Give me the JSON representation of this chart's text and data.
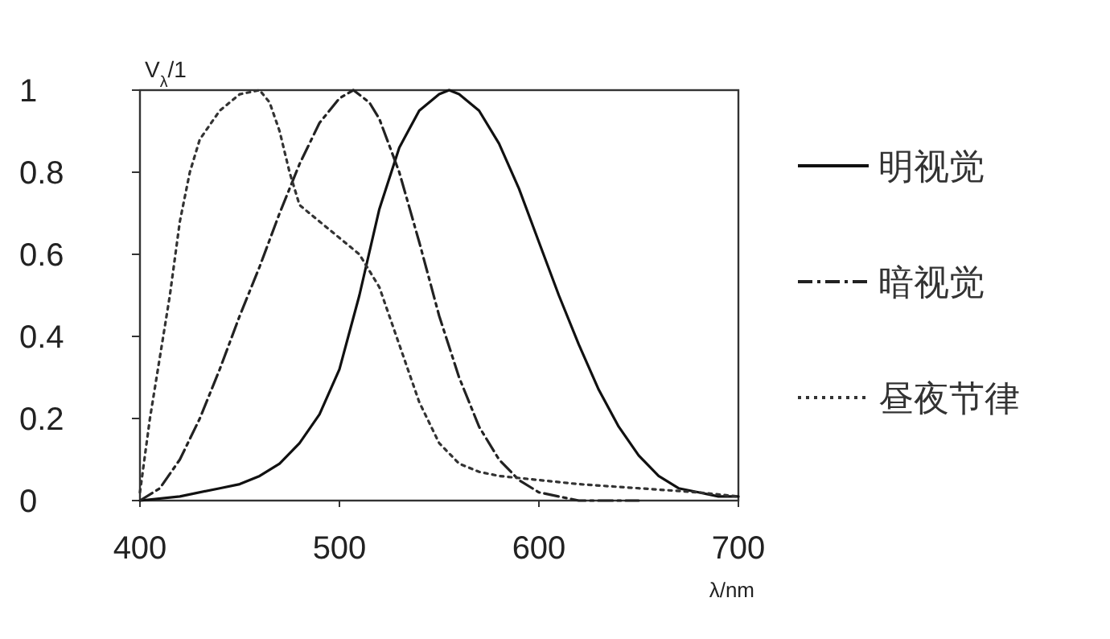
{
  "chart_data": {
    "type": "line",
    "ylabel": "V$_{λ}$/1",
    "xlabel": "λ/nm",
    "xlim": [
      400,
      700
    ],
    "ylim": [
      0,
      1
    ],
    "xticks": [
      400,
      500,
      600,
      700
    ],
    "yticks": [
      0,
      0.2,
      0.4,
      0.6,
      0.8,
      1
    ],
    "grid": false,
    "legend": "right",
    "series": [
      {
        "name": "明视觉",
        "color": "#111111",
        "line_style": "solid",
        "x": [
          400,
          420,
          440,
          450,
          460,
          470,
          480,
          490,
          500,
          510,
          520,
          530,
          540,
          550,
          555,
          560,
          570,
          580,
          590,
          600,
          610,
          620,
          630,
          640,
          650,
          660,
          670,
          680,
          690,
          700
        ],
        "values": [
          0,
          0.01,
          0.03,
          0.04,
          0.06,
          0.09,
          0.14,
          0.21,
          0.32,
          0.5,
          0.71,
          0.86,
          0.95,
          0.99,
          1,
          0.99,
          0.95,
          0.87,
          0.76,
          0.63,
          0.5,
          0.38,
          0.27,
          0.18,
          0.11,
          0.06,
          0.03,
          0.02,
          0.01,
          0.01
        ]
      },
      {
        "name": "暗视觉",
        "color": "#222222",
        "line_style": "dashdot",
        "x": [
          400,
          410,
          420,
          430,
          440,
          450,
          460,
          470,
          480,
          490,
          500,
          507,
          515,
          520,
          530,
          540,
          550,
          560,
          570,
          580,
          590,
          600,
          610,
          620,
          650
        ],
        "values": [
          0,
          0.03,
          0.1,
          0.2,
          0.32,
          0.45,
          0.57,
          0.7,
          0.82,
          0.92,
          0.98,
          1,
          0.97,
          0.93,
          0.8,
          0.63,
          0.45,
          0.3,
          0.18,
          0.1,
          0.05,
          0.02,
          0.01,
          0,
          0
        ]
      },
      {
        "name": "昼夜节律",
        "color": "#333333",
        "line_style": "dotted",
        "x": [
          400,
          405,
          410,
          415,
          420,
          425,
          430,
          440,
          450,
          460,
          465,
          470,
          475,
          480,
          490,
          500,
          510,
          520,
          530,
          540,
          550,
          560,
          570,
          580,
          600,
          620,
          650,
          680,
          700
        ],
        "values": [
          0.02,
          0.2,
          0.35,
          0.5,
          0.68,
          0.8,
          0.88,
          0.95,
          0.99,
          1,
          0.97,
          0.9,
          0.8,
          0.72,
          0.68,
          0.64,
          0.6,
          0.52,
          0.38,
          0.24,
          0.14,
          0.09,
          0.07,
          0.06,
          0.05,
          0.04,
          0.03,
          0.02,
          0.01
        ]
      }
    ]
  }
}
